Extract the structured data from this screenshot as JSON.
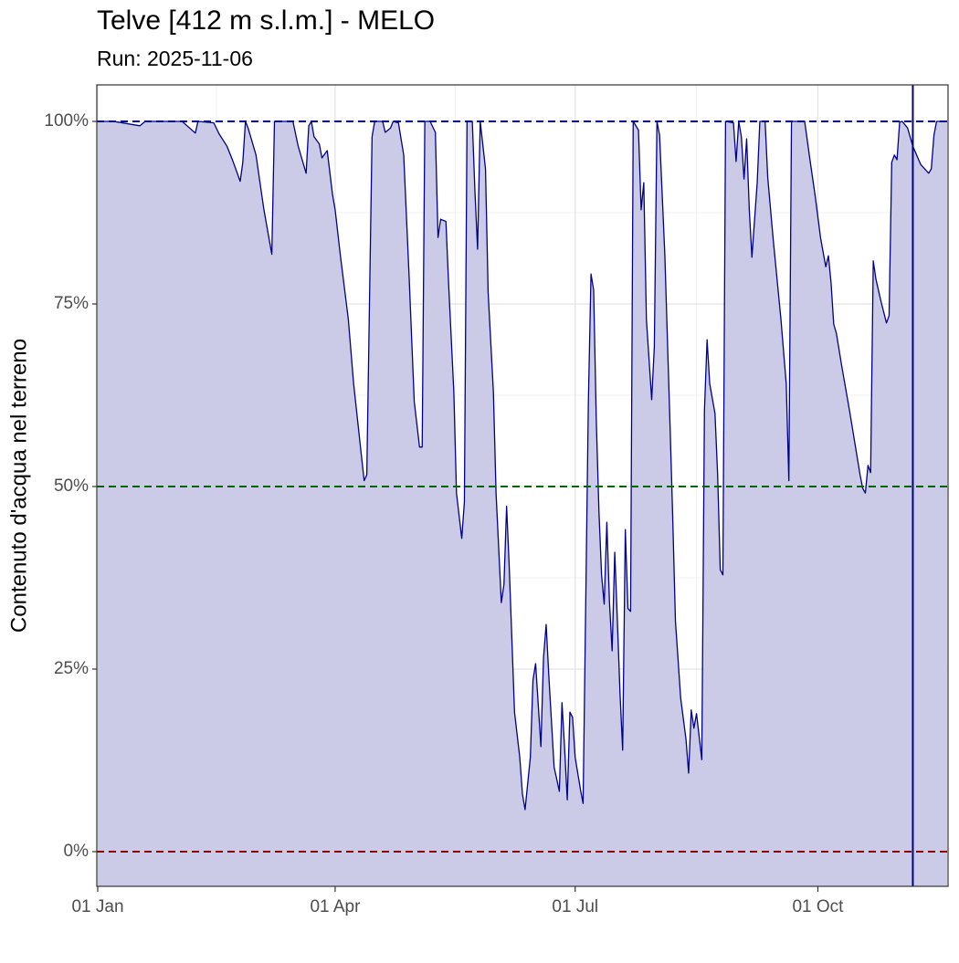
{
  "chart_data": {
    "type": "area",
    "title": "Telve [412 m s.l.m.] - MELO",
    "subtitle": "Run: 2025-11-06",
    "y_label": "Contenuto d'acqua nel terreno",
    "x": [
      1,
      7,
      17,
      19,
      33,
      38,
      39,
      45,
      47,
      50,
      52,
      55,
      56,
      57,
      58,
      61,
      64,
      67,
      68,
      75,
      77,
      80,
      81,
      82,
      83,
      85,
      86,
      88,
      90,
      91,
      93,
      96,
      98,
      101,
      102,
      103,
      105,
      106,
      109,
      110,
      112,
      113,
      115,
      117,
      119,
      121,
      123,
      124,
      125,
      127,
      129,
      130,
      131,
      133,
      134,
      136,
      137,
      139,
      140,
      141,
      143,
      144,
      145,
      146,
      148,
      149,
      151,
      152,
      154,
      155,
      156,
      157,
      158,
      159,
      161,
      162,
      163,
      165,
      166,
      167,
      169,
      170,
      171,
      172,
      173,
      174,
      176,
      177,
      178,
      179,
      180,
      181,
      182,
      184,
      185,
      187,
      188,
      189,
      190,
      191,
      192,
      193,
      194,
      195,
      196,
      197,
      198,
      199,
      200,
      201,
      202,
      203,
      204,
      206,
      207,
      208,
      209,
      211,
      212,
      213,
      214,
      216,
      218,
      219,
      220,
      222,
      224,
      225,
      226,
      227,
      228,
      230,
      231,
      232,
      233,
      235,
      236,
      237,
      238,
      239,
      242,
      243,
      244,
      245,
      246,
      247,
      248,
      249,
      251,
      252,
      254,
      255,
      257,
      260,
      262,
      263,
      264,
      269,
      271,
      273,
      275,
      277,
      278,
      279,
      280,
      281,
      283,
      286,
      288,
      290,
      291,
      292,
      293,
      294,
      295,
      296,
      298,
      300,
      301,
      302,
      303,
      304,
      305,
      306,
      308,
      310,
      313,
      316,
      317,
      318,
      319,
      323
    ],
    "series": [
      {
        "color": "#00008b",
        "fill": "#cbcbe8",
        "values": [
          100,
          100,
          99.4,
          100,
          100,
          98.4,
          100,
          99.8,
          98.3,
          96.6,
          94.8,
          91.8,
          94.4,
          100,
          99.1,
          95.4,
          87.9,
          81.8,
          100,
          100,
          96.6,
          92.9,
          99.4,
          100,
          97.9,
          96.9,
          95,
          96,
          90,
          87.9,
          81.6,
          72.9,
          64.1,
          54.1,
          50.8,
          51.6,
          97.9,
          100,
          100,
          98.5,
          99.1,
          100,
          99.8,
          95.4,
          79.1,
          61.6,
          55.4,
          55.4,
          100,
          100,
          98.5,
          84.1,
          86.6,
          86.3,
          77.9,
          62.9,
          49.1,
          42.9,
          47.9,
          100,
          100,
          90.4,
          82.5,
          100,
          93.5,
          76.6,
          62.9,
          49.1,
          34.1,
          36.6,
          47.3,
          39,
          29.1,
          19.1,
          12.9,
          7.9,
          5.75,
          12.9,
          23.5,
          25.75,
          14.4,
          26.6,
          31.1,
          24.1,
          17.9,
          11.6,
          8.25,
          20.4,
          14.1,
          7.1,
          19.1,
          18.4,
          12.9,
          8.5,
          6.6,
          61.6,
          79.1,
          76.9,
          59.1,
          46.6,
          37.9,
          33.9,
          45.1,
          34.1,
          27.5,
          41,
          31.6,
          21.6,
          13.9,
          44.1,
          33.3,
          32.9,
          100,
          98.8,
          87.9,
          91.6,
          72.9,
          61.9,
          69.1,
          100,
          98.1,
          81.6,
          57.9,
          45.4,
          31.6,
          21,
          15.4,
          10.75,
          19.4,
          16.9,
          18.9,
          12.6,
          60.4,
          70.1,
          64.1,
          60,
          51.6,
          38.6,
          37.9,
          100,
          99.8,
          94.5,
          100,
          97.9,
          92.1,
          97.6,
          87.9,
          81.4,
          91.6,
          100,
          100,
          92.3,
          84.1,
          72.9,
          64.1,
          50.8,
          100,
          100,
          94.75,
          89.75,
          84.1,
          80.1,
          81.6,
          77.9,
          72.25,
          71,
          66.6,
          60.4,
          56,
          51.6,
          49.75,
          49.1,
          52.9,
          51.9,
          80.9,
          78.4,
          75.25,
          72.4,
          73.4,
          94.4,
          95.4,
          94.75,
          99.9,
          100,
          99.1,
          96.6,
          94.1,
          92.9,
          93.5,
          98.1,
          100,
          100
        ]
      }
    ],
    "xlim": [
      1,
      323
    ],
    "xticks": [
      {
        "value": 1,
        "label": "01 Jan"
      },
      {
        "value": 91,
        "label": "01 Apr"
      },
      {
        "value": 182,
        "label": "01 Jul"
      },
      {
        "value": 274,
        "label": "01 Oct"
      }
    ],
    "ylim": [
      -4.75,
      105
    ],
    "yticks": [
      {
        "value": 0,
        "label": "0%"
      },
      {
        "value": 25,
        "label": "25%"
      },
      {
        "value": 50,
        "label": "50%"
      },
      {
        "value": 75,
        "label": "75%"
      },
      {
        "value": 100,
        "label": "100%"
      }
    ],
    "reference_lines": [
      {
        "value": 100,
        "color": "#00008b"
      },
      {
        "value": 50,
        "color": "#006400"
      },
      {
        "value": 0,
        "color": "#8b0000"
      }
    ],
    "vline": {
      "value": 310,
      "color": "#00008b"
    },
    "grid": true
  }
}
